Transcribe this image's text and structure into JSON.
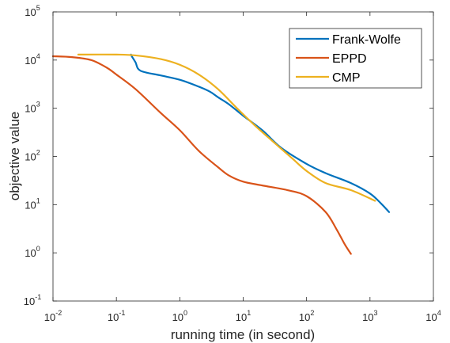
{
  "chart_data": {
    "type": "line",
    "title": "",
    "xlabel": "running time (in second)",
    "ylabel": "objective value",
    "xscale": "log",
    "yscale": "log",
    "xlim": [
      0.01,
      10000
    ],
    "ylim": [
      0.1,
      100000
    ],
    "grid": false,
    "legend_position": "top-right",
    "x_ticks": [
      {
        "value": 0.01,
        "base": "10",
        "exp": "-2"
      },
      {
        "value": 0.1,
        "base": "10",
        "exp": "-1"
      },
      {
        "value": 1,
        "base": "10",
        "exp": "0"
      },
      {
        "value": 10,
        "base": "10",
        "exp": "1"
      },
      {
        "value": 100,
        "base": "10",
        "exp": "2"
      },
      {
        "value": 1000,
        "base": "10",
        "exp": "3"
      },
      {
        "value": 10000,
        "base": "10",
        "exp": "4"
      }
    ],
    "y_ticks": [
      {
        "value": 0.1,
        "base": "10",
        "exp": "-1"
      },
      {
        "value": 1,
        "base": "10",
        "exp": "0"
      },
      {
        "value": 10,
        "base": "10",
        "exp": "1"
      },
      {
        "value": 100,
        "base": "10",
        "exp": "2"
      },
      {
        "value": 1000,
        "base": "10",
        "exp": "3"
      },
      {
        "value": 10000,
        "base": "10",
        "exp": "4"
      },
      {
        "value": 100000,
        "base": "10",
        "exp": "5"
      }
    ],
    "series": [
      {
        "name": "Frank-Wolfe",
        "color": "#0072BD",
        "points": [
          [
            0.17,
            13000
          ],
          [
            0.175,
            12000
          ],
          [
            0.2,
            9000
          ],
          [
            0.24,
            6000
          ],
          [
            0.5,
            4800
          ],
          [
            1,
            3900
          ],
          [
            2,
            2800
          ],
          [
            3,
            2200
          ],
          [
            4,
            1700
          ],
          [
            6,
            1200
          ],
          [
            10,
            700
          ],
          [
            20,
            350
          ],
          [
            40,
            150
          ],
          [
            100,
            70
          ],
          [
            200,
            45
          ],
          [
            500,
            28
          ],
          [
            1000,
            17
          ],
          [
            1500,
            10.5
          ],
          [
            2000,
            7
          ]
        ]
      },
      {
        "name": "EPPD",
        "color": "#D95319",
        "points": [
          [
            0.01,
            12000
          ],
          [
            0.02,
            11500
          ],
          [
            0.04,
            10000
          ],
          [
            0.07,
            7000
          ],
          [
            0.1,
            5000
          ],
          [
            0.2,
            2500
          ],
          [
            0.5,
            800
          ],
          [
            1,
            350
          ],
          [
            2,
            130
          ],
          [
            4,
            60
          ],
          [
            6,
            40
          ],
          [
            10,
            30
          ],
          [
            20,
            25
          ],
          [
            50,
            20
          ],
          [
            100,
            15
          ],
          [
            200,
            7
          ],
          [
            300,
            3
          ],
          [
            400,
            1.5
          ],
          [
            500,
            0.95
          ]
        ]
      },
      {
        "name": "CMP",
        "color": "#EDB120",
        "points": [
          [
            0.025,
            13000
          ],
          [
            0.1,
            13000
          ],
          [
            0.2,
            12500
          ],
          [
            0.5,
            10500
          ],
          [
            1,
            8000
          ],
          [
            2,
            5000
          ],
          [
            4,
            2500
          ],
          [
            8,
            1000
          ],
          [
            15,
            450
          ],
          [
            30,
            200
          ],
          [
            60,
            90
          ],
          [
            100,
            50
          ],
          [
            200,
            28
          ],
          [
            500,
            20
          ],
          [
            1200,
            12
          ]
        ]
      }
    ]
  }
}
